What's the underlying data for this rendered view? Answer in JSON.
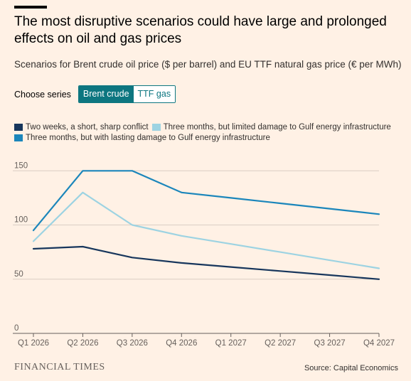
{
  "title": "The most disruptive scenarios could have large and prolonged effects on oil and gas prices",
  "subtitle": "Scenarios for Brent crude oil price ($ per barrel) and EU TTF natural gas price (€ per MWh)",
  "chooser": {
    "label": "Choose series",
    "options": [
      "Brent crude",
      "TTF gas"
    ],
    "selected": "Brent crude"
  },
  "colors": {
    "background": "#fff1e5",
    "accent": "#0d7680",
    "series": [
      "#17365c",
      "#9dd3e2",
      "#1b86bb"
    ],
    "grid": "#d9cec4"
  },
  "chart_data": {
    "type": "line",
    "x": [
      "Q1 2026",
      "Q2 2026",
      "Q3 2026",
      "Q4 2026",
      "Q1 2027",
      "Q2 2027",
      "Q3 2027",
      "Q4 2027"
    ],
    "series": [
      {
        "name": "Two weeks, a short, sharp conflict",
        "values": [
          78,
          80,
          70,
          65,
          61.25,
          57.5,
          53.75,
          50
        ]
      },
      {
        "name": "Three months, but limited damage to Gulf energy infrastructure",
        "values": [
          85,
          130,
          100,
          90,
          82.5,
          75,
          67.5,
          60
        ]
      },
      {
        "name": "Three months, but with lasting damage to Gulf energy infrastructure",
        "values": [
          95,
          150,
          150,
          130,
          125,
          120,
          115,
          110
        ]
      }
    ],
    "yticks": [
      0,
      50,
      100,
      150
    ],
    "ylim": [
      0,
      160
    ],
    "grid": true,
    "legend_position": "top-left"
  },
  "footer": {
    "brand": "FINANCIAL TIMES",
    "source": "Source: Capital Economics"
  }
}
